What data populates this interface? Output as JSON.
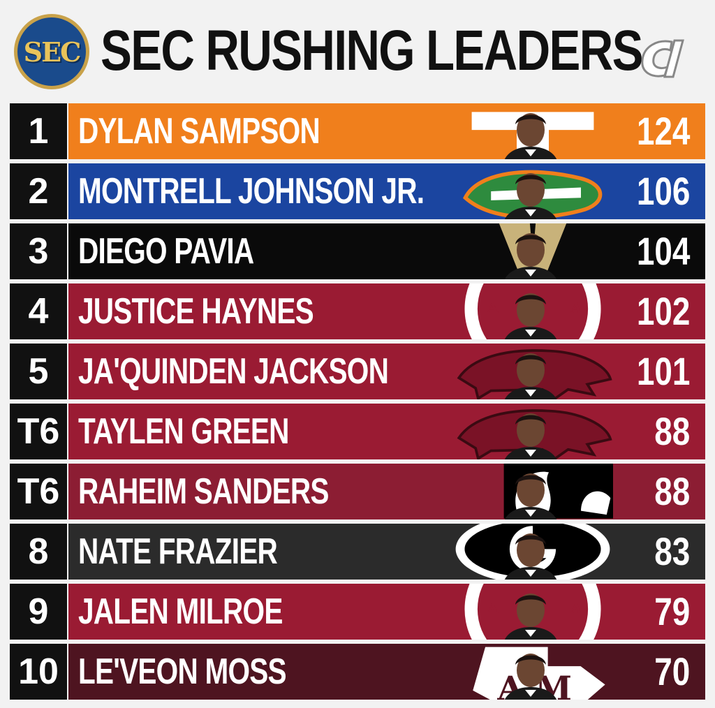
{
  "header": {
    "title": "SEC RUSHING LEADERS",
    "conference_logo_text": "SEC"
  },
  "leaders": [
    {
      "rank": "1",
      "name": "DYLAN SAMPSON",
      "value": "124",
      "color": "#f07f1c",
      "logo": "tennessee-t-logo"
    },
    {
      "rank": "2",
      "name": "MONTRELL JOHNSON JR.",
      "value": "106",
      "color": "#1b45a0",
      "logo": "florida-gator-logo"
    },
    {
      "rank": "3",
      "name": "DIEGO PAVIA",
      "value": "104",
      "color": "#0a0a0a",
      "logo": "vanderbilt-v-logo"
    },
    {
      "rank": "4",
      "name": "JUSTICE HAYNES",
      "value": "102",
      "color": "#9a1b33",
      "logo": "alabama-a-logo"
    },
    {
      "rank": "5",
      "name": "JA'QUINDEN JACKSON",
      "value": "101",
      "color": "#9a1b33",
      "logo": "arkansas-razorback-logo"
    },
    {
      "rank": "T6",
      "name": "TAYLEN GREEN",
      "value": "88",
      "color": "#9a1b33",
      "logo": "arkansas-razorback-logo"
    },
    {
      "rank": "T6",
      "name": "RAHEIM SANDERS",
      "value": "88",
      "color": "#8c1d33",
      "logo": "south-carolina-gamecock-logo"
    },
    {
      "rank": "8",
      "name": "NATE FRAZIER",
      "value": "83",
      "color": "#2b2b2b",
      "logo": "georgia-g-logo"
    },
    {
      "rank": "9",
      "name": "JALEN MILROE",
      "value": "79",
      "color": "#9a1b33",
      "logo": "alabama-a-logo"
    },
    {
      "rank": "10",
      "name": "LE'VEON MOSS",
      "value": "70",
      "color": "#4e1420",
      "logo": "texas-am-logo"
    }
  ]
}
